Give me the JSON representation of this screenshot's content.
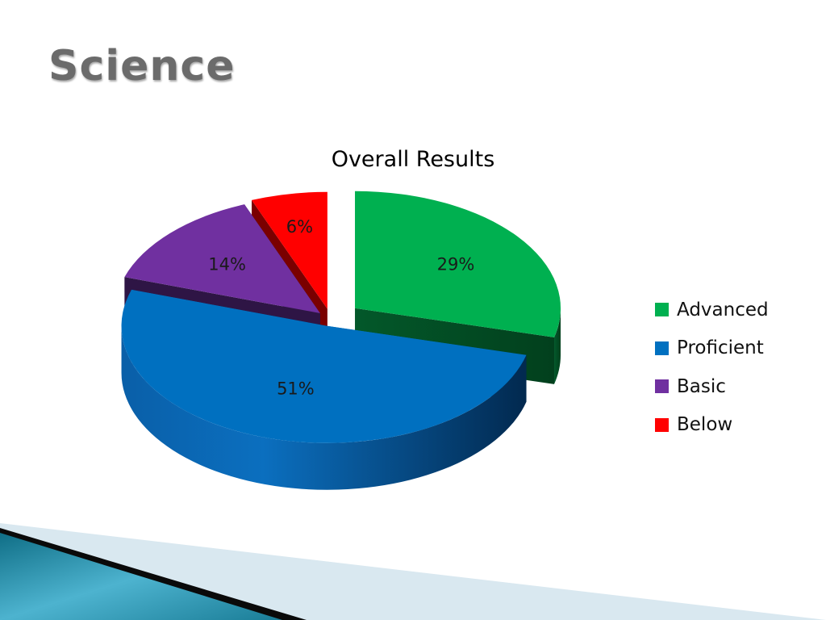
{
  "slide": {
    "title": "Science"
  },
  "chart_data": {
    "type": "pie",
    "title": "Overall Results",
    "categories": [
      "Advanced",
      "Proficient",
      "Basic",
      "Below"
    ],
    "values": [
      29,
      51,
      14,
      6
    ],
    "data_labels": [
      "29%",
      "51%",
      "14%",
      "6%"
    ],
    "exploded": true,
    "three_d": true,
    "legend_position": "right",
    "colors": [
      "#00b050",
      "#0070c0",
      "#7030a0",
      "#ff0000"
    ]
  }
}
